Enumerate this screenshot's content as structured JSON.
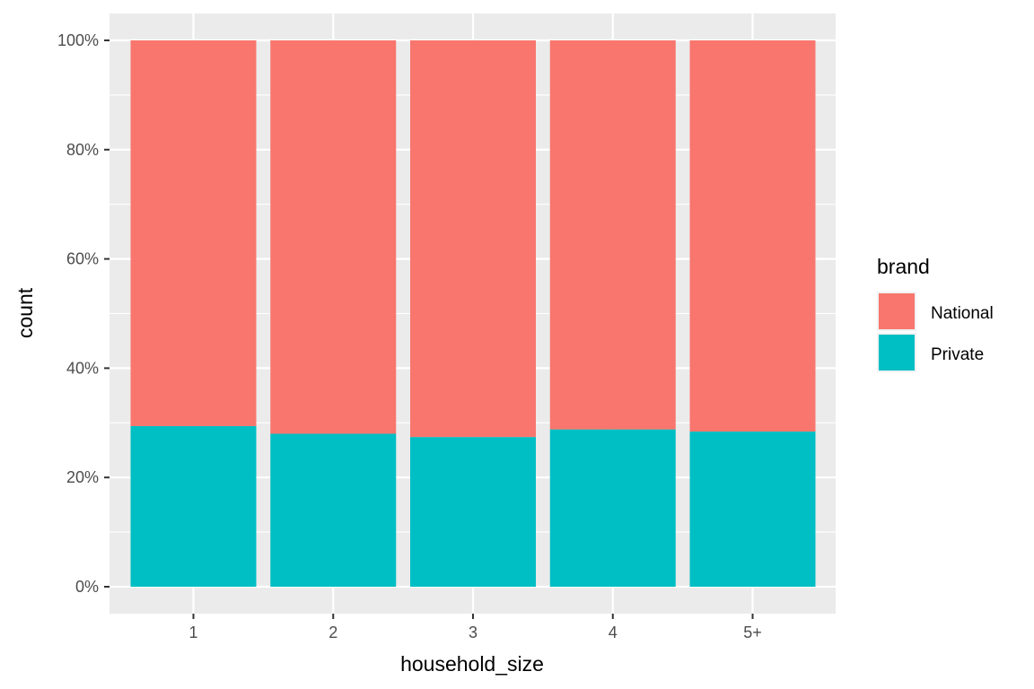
{
  "chart_data": {
    "type": "bar",
    "stacked": true,
    "position": "fill",
    "categories": [
      "1",
      "2",
      "3",
      "4",
      "5+"
    ],
    "series": [
      {
        "name": "National",
        "color": "#F8766D",
        "values": [
          70.6,
          72.0,
          72.6,
          71.2,
          71.6
        ]
      },
      {
        "name": "Private",
        "color": "#00BFC4",
        "values": [
          29.4,
          28.0,
          27.4,
          28.8,
          28.4
        ]
      }
    ],
    "xlabel": "household_size",
    "ylabel": "count",
    "ylim": [
      0,
      100
    ],
    "yticks": [
      0,
      20,
      40,
      60,
      80,
      100
    ],
    "ytick_labels": [
      "0%",
      "20%",
      "40%",
      "60%",
      "80%",
      "100%"
    ],
    "legend": {
      "title": "brand",
      "position": "right",
      "entries": [
        "National",
        "Private"
      ]
    },
    "grid": true
  }
}
